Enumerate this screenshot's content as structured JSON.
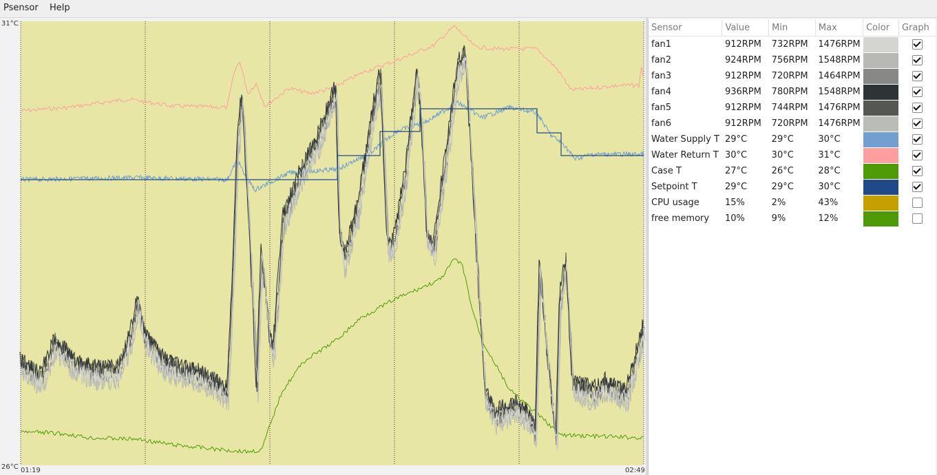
{
  "menu": {
    "psensor": "Psensor",
    "help": "Help"
  },
  "graph": {
    "y_max_label": "31°C",
    "y_min_label": "26°C",
    "x_start_label": "01:19",
    "x_end_label": "02:49",
    "background": "#e8e6a4"
  },
  "table": {
    "headers": {
      "sensor": "Sensor",
      "value": "Value",
      "min": "Min",
      "max": "Max",
      "color": "Color",
      "graph": "Graph"
    },
    "rows": [
      {
        "sensor": "fan1",
        "value": "912RPM",
        "min": "732RPM",
        "max": "1476RPM",
        "color": "#d4d5d0",
        "graph": true
      },
      {
        "sensor": "fan2",
        "value": "924RPM",
        "min": "756RPM",
        "max": "1548RPM",
        "color": "#b8b9b5",
        "graph": true
      },
      {
        "sensor": "fan3",
        "value": "912RPM",
        "min": "720RPM",
        "max": "1464RPM",
        "color": "#888986",
        "graph": true
      },
      {
        "sensor": "fan4",
        "value": "936RPM",
        "min": "780RPM",
        "max": "1548RPM",
        "color": "#2e3436",
        "graph": true
      },
      {
        "sensor": "fan5",
        "value": "912RPM",
        "min": "744RPM",
        "max": "1476RPM",
        "color": "#555753",
        "graph": true
      },
      {
        "sensor": "fan6",
        "value": "912RPM",
        "min": "720RPM",
        "max": "1476RPM",
        "color": "#babdb6",
        "graph": true
      },
      {
        "sensor": "Water Supply T",
        "value": "29°C",
        "min": "29°C",
        "max": "30°C",
        "color": "#729fcf",
        "graph": true
      },
      {
        "sensor": "Water Return T",
        "value": "30°C",
        "min": "30°C",
        "max": "31°C",
        "color": "#ff9e9e",
        "graph": true
      },
      {
        "sensor": "Case T",
        "value": "27°C",
        "min": "26°C",
        "max": "28°C",
        "color": "#4e9a06",
        "graph": true
      },
      {
        "sensor": "Setpoint T",
        "value": "29°C",
        "min": "29°C",
        "max": "30°C",
        "color": "#204a87",
        "graph": true
      },
      {
        "sensor": "CPU usage",
        "value": "15%",
        "min": "2%",
        "max": "43%",
        "color": "#c4a000",
        "graph": false
      },
      {
        "sensor": "free memory",
        "value": "10%",
        "min": "9%",
        "max": "12%",
        "color": "#4e9a06",
        "graph": false
      }
    ]
  }
}
